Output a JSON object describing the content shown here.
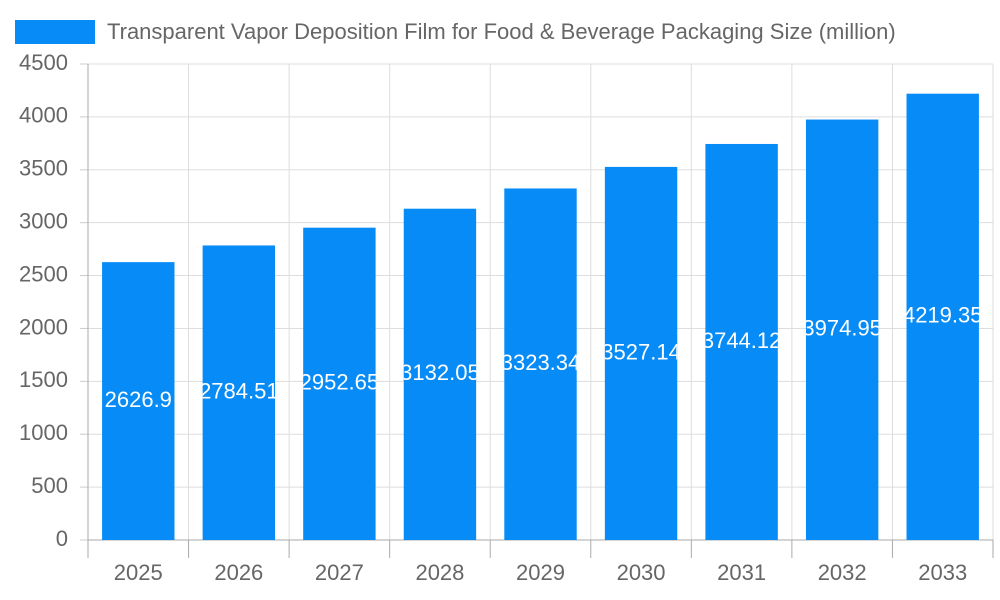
{
  "chart_data": {
    "type": "bar",
    "series": [
      {
        "name": "Transparent Vapor Deposition Film for Food & Beverage Packaging Size (million)",
        "color": "#078bf6",
        "values": [
          2626.9,
          2784.51,
          2952.65,
          3132.05,
          3323.34,
          3527.14,
          3744.12,
          3974.95,
          4219.35
        ]
      }
    ],
    "categories": [
      "2025",
      "2026",
      "2027",
      "2028",
      "2029",
      "2030",
      "2031",
      "2032",
      "2033"
    ],
    "ylim": [
      0,
      4500
    ],
    "yticks": [
      0,
      500,
      1000,
      1500,
      2000,
      2500,
      3000,
      3500,
      4000,
      4500
    ],
    "grid": true,
    "legend": "top-left"
  }
}
